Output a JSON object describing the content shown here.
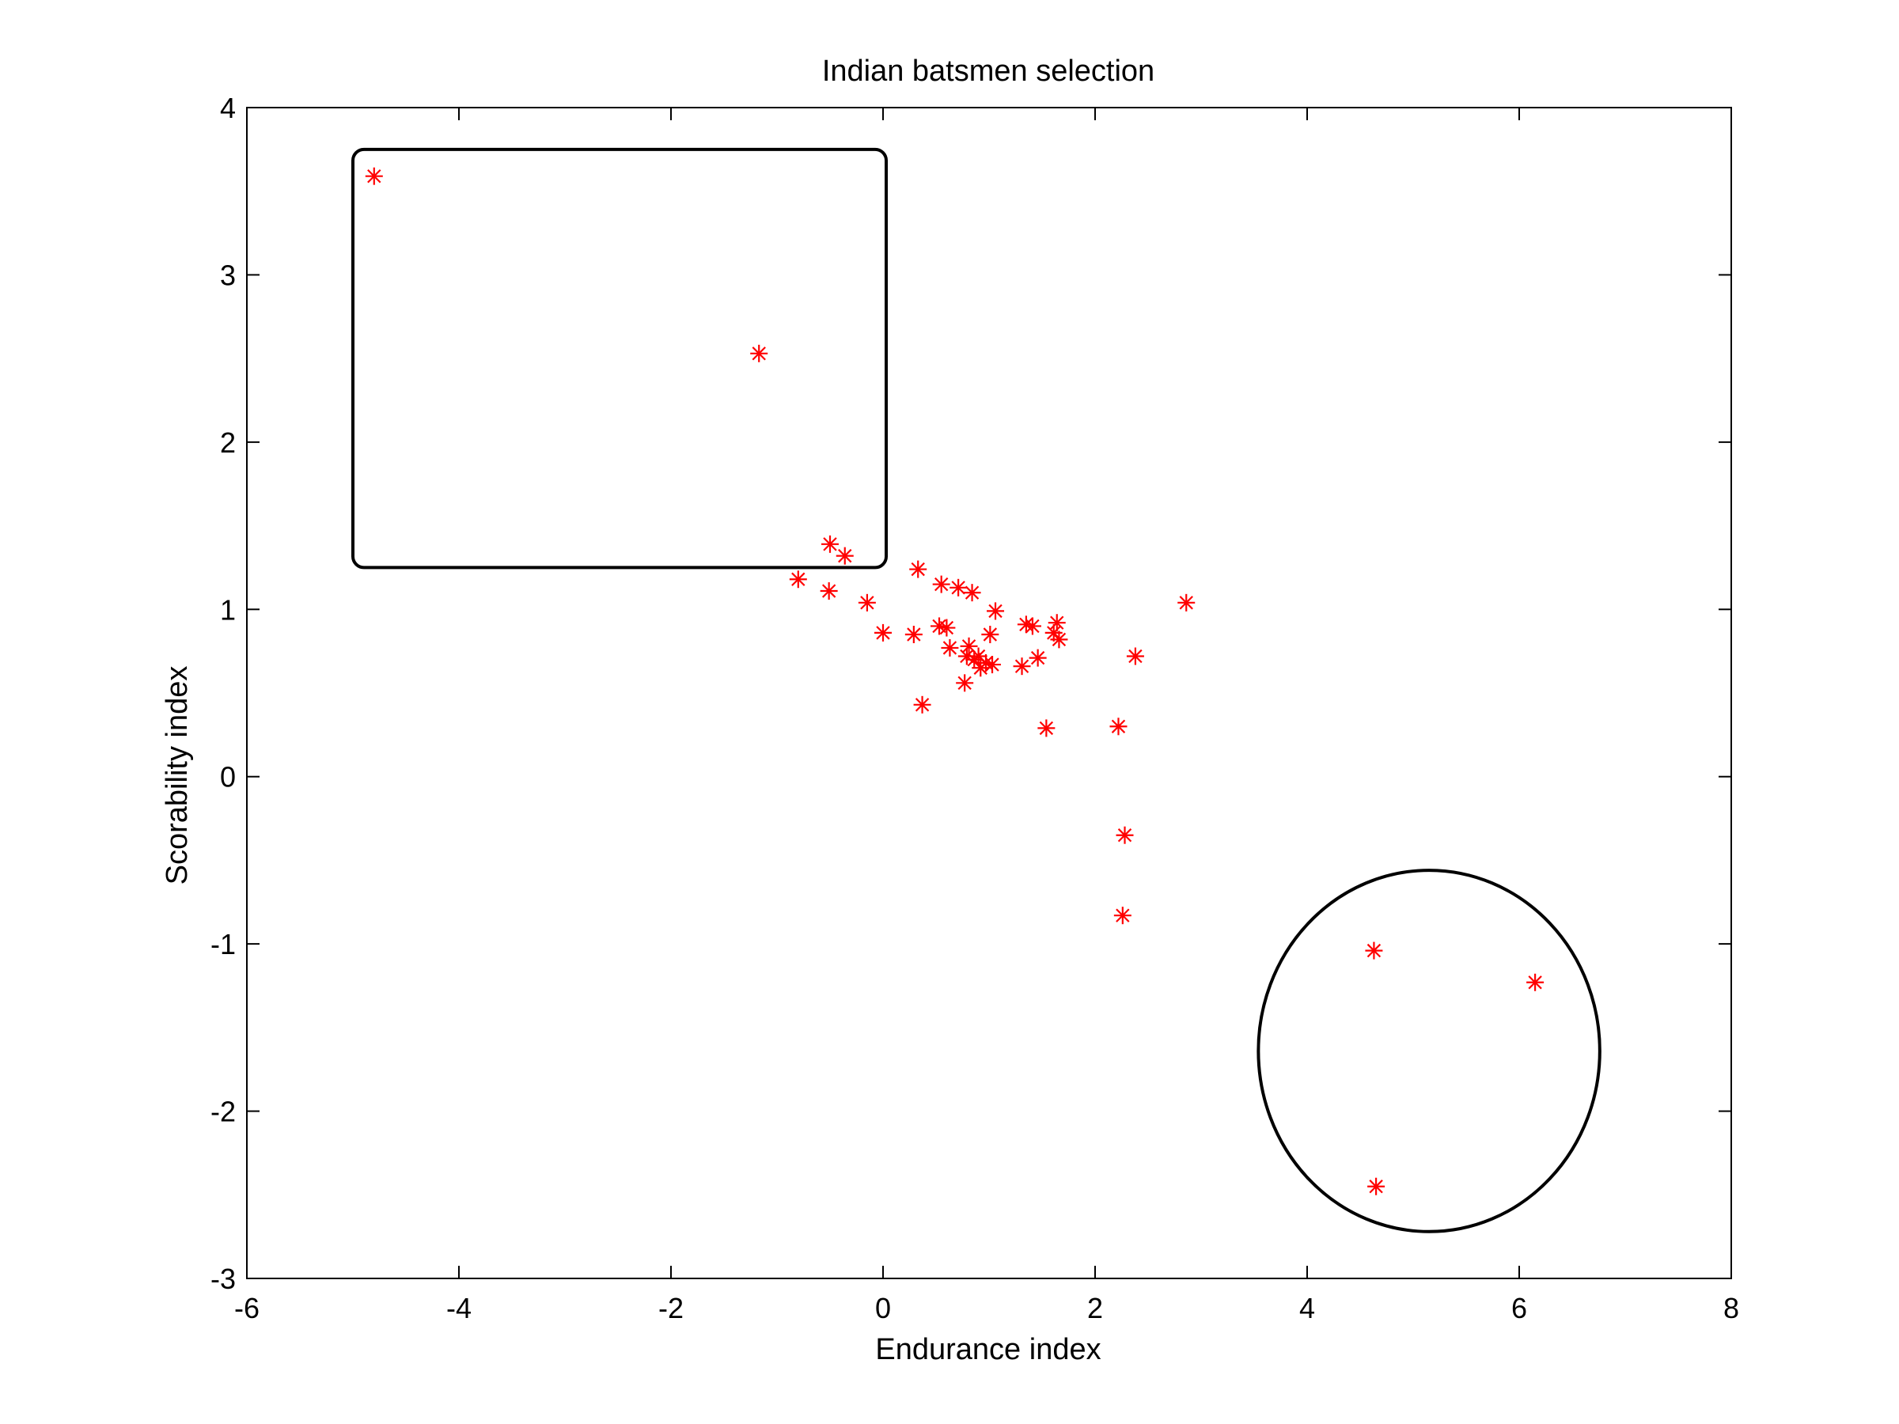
{
  "chart_data": {
    "type": "scatter",
    "title": "Indian batsmen selection",
    "xlabel": "Endurance index",
    "ylabel": "Scorability index",
    "xlim": [
      -6,
      8
    ],
    "ylim": [
      -3,
      4
    ],
    "xticks": [
      "-6",
      "-4",
      "-2",
      "0",
      "2",
      "4",
      "6",
      "8"
    ],
    "yticks": [
      "-3",
      "-2",
      "-1",
      "0",
      "1",
      "2",
      "3",
      "4"
    ],
    "grid": false,
    "marker": "asterisk",
    "marker_color": "#ff0000",
    "points": [
      {
        "x": -4.8,
        "y": 3.59
      },
      {
        "x": -1.17,
        "y": 2.53
      },
      {
        "x": -0.5,
        "y": 1.39
      },
      {
        "x": -0.36,
        "y": 1.32
      },
      {
        "x": -0.8,
        "y": 1.18
      },
      {
        "x": -0.51,
        "y": 1.11
      },
      {
        "x": -0.15,
        "y": 1.04
      },
      {
        "x": 0.0,
        "y": 0.86
      },
      {
        "x": 0.29,
        "y": 0.85
      },
      {
        "x": 0.33,
        "y": 1.24
      },
      {
        "x": 0.37,
        "y": 0.43
      },
      {
        "x": 0.53,
        "y": 0.9
      },
      {
        "x": 0.55,
        "y": 1.15
      },
      {
        "x": 0.6,
        "y": 0.89
      },
      {
        "x": 0.63,
        "y": 0.77
      },
      {
        "x": 0.71,
        "y": 1.13
      },
      {
        "x": 0.77,
        "y": 0.56
      },
      {
        "x": 0.79,
        "y": 0.72
      },
      {
        "x": 0.81,
        "y": 0.78
      },
      {
        "x": 0.84,
        "y": 1.1
      },
      {
        "x": 0.86,
        "y": 0.7
      },
      {
        "x": 0.9,
        "y": 0.72
      },
      {
        "x": 0.92,
        "y": 0.65
      },
      {
        "x": 0.97,
        "y": 0.68
      },
      {
        "x": 1.01,
        "y": 0.85
      },
      {
        "x": 1.03,
        "y": 0.67
      },
      {
        "x": 1.06,
        "y": 0.99
      },
      {
        "x": 1.31,
        "y": 0.66
      },
      {
        "x": 1.35,
        "y": 0.91
      },
      {
        "x": 1.41,
        "y": 0.9
      },
      {
        "x": 1.46,
        "y": 0.71
      },
      {
        "x": 1.54,
        "y": 0.29
      },
      {
        "x": 1.61,
        "y": 0.86
      },
      {
        "x": 1.64,
        "y": 0.92
      },
      {
        "x": 1.66,
        "y": 0.82
      },
      {
        "x": 2.22,
        "y": 0.3
      },
      {
        "x": 2.38,
        "y": 0.72
      },
      {
        "x": 2.28,
        "y": -0.35
      },
      {
        "x": 2.26,
        "y": -0.83
      },
      {
        "x": 2.86,
        "y": 1.04
      },
      {
        "x": 4.63,
        "y": -1.04
      },
      {
        "x": 6.15,
        "y": -1.23
      },
      {
        "x": 4.65,
        "y": -2.45
      }
    ],
    "annotations": [
      {
        "shape": "rounded-rectangle",
        "x": [
          -5.0,
          0.03
        ],
        "y": [
          1.25,
          3.75
        ]
      },
      {
        "shape": "ellipse",
        "cx": 5.15,
        "cy": -1.64,
        "rx": 1.61,
        "ry": 1.08
      }
    ]
  }
}
